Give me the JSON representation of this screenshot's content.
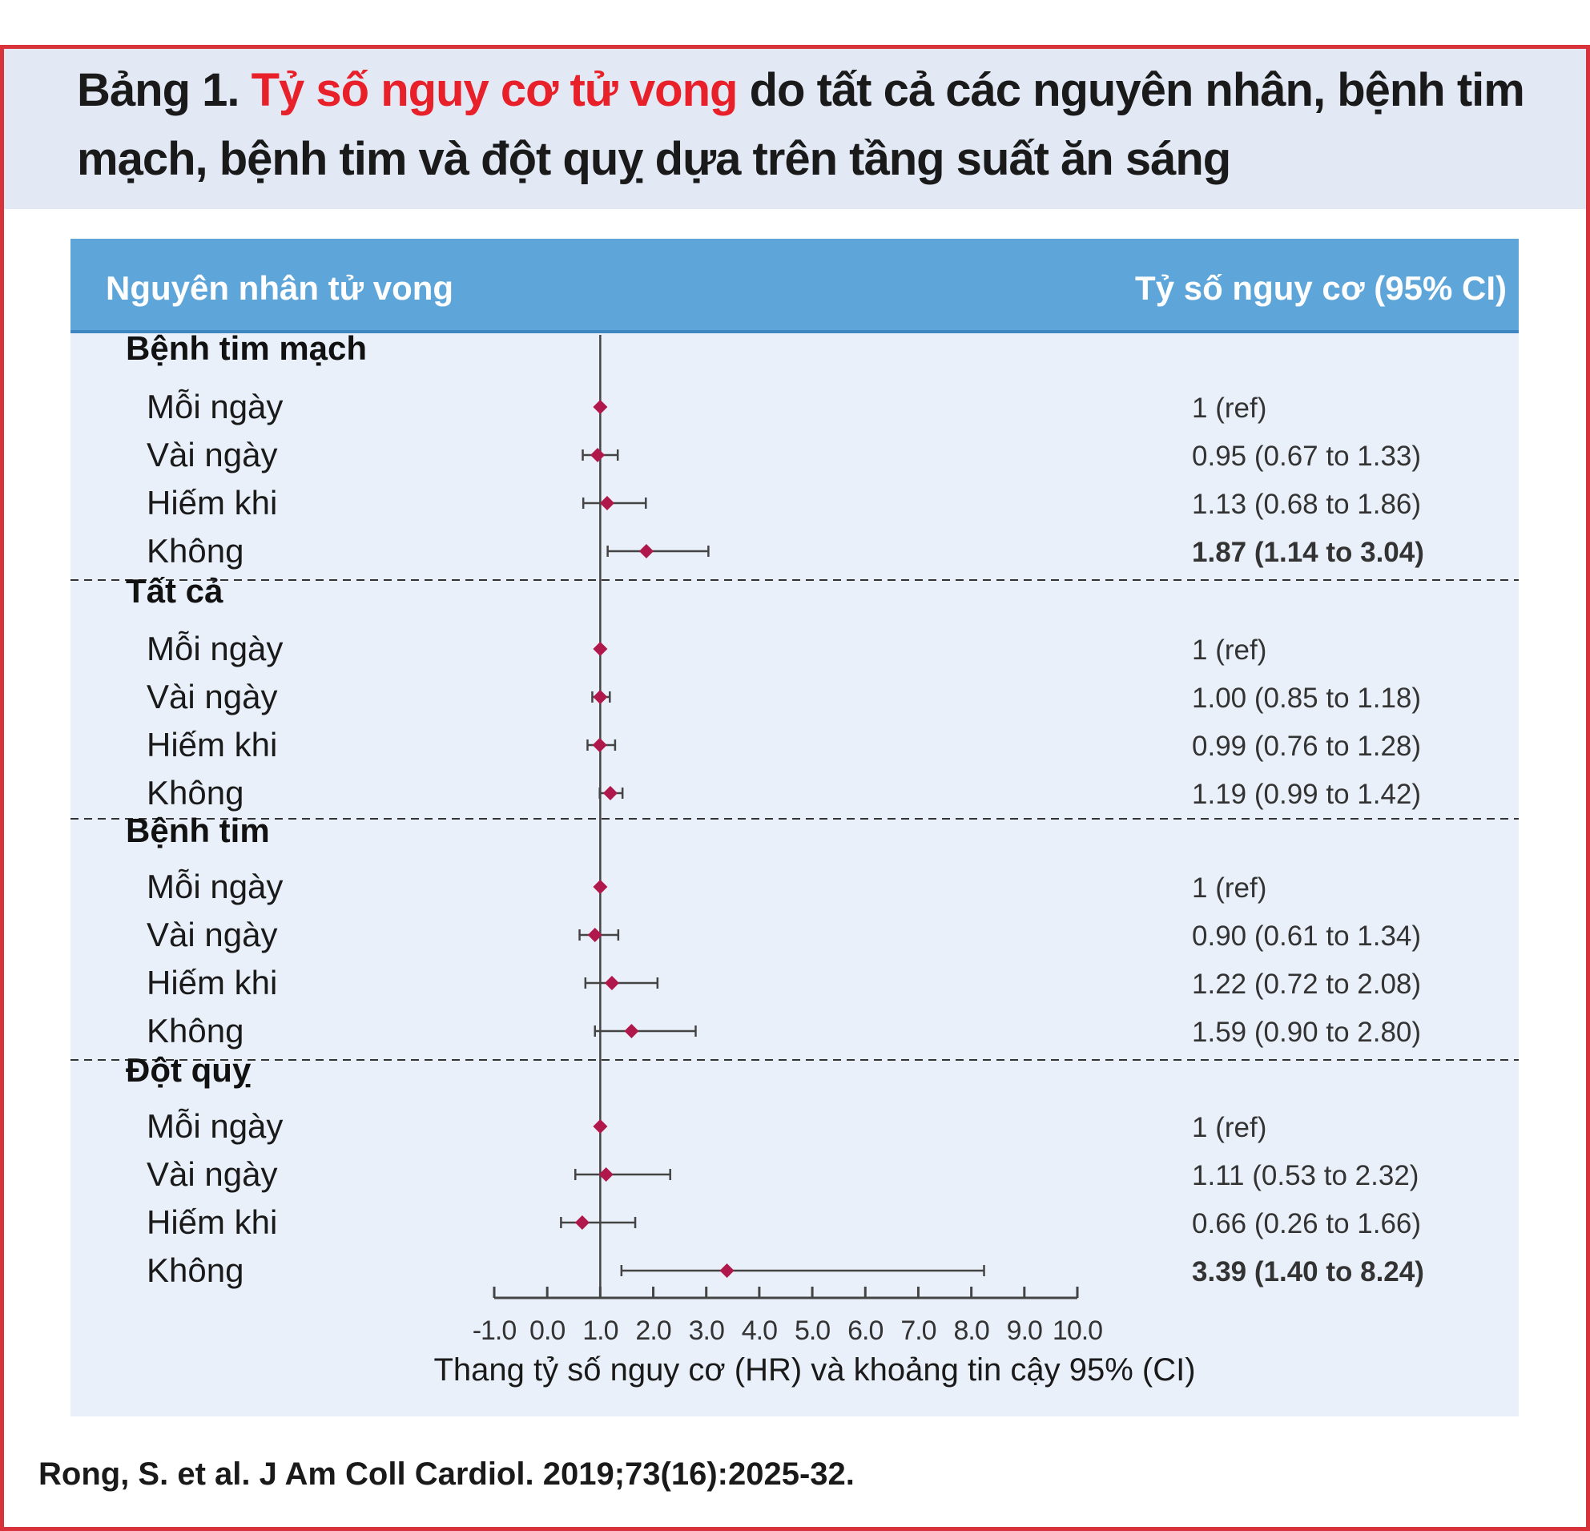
{
  "title": {
    "prefix": "Bảng 1.",
    "highlight": "Tỷ số nguy cơ tử vong",
    "rest": "do tất cả các nguyên nhân, bệnh tim mạch, bệnh tim và đột quỵ dựa trên tầng suất ăn sáng"
  },
  "header": {
    "left": "Nguyên nhân tử vong",
    "right": "Tỷ số nguy cơ (95% CI)"
  },
  "colors": {
    "marker": "#b0174a",
    "line": "#444444",
    "group_text": "#111111",
    "row_text": "#1a1a1a"
  },
  "citation": "Rong, S. et al. J Am Coll Cardiol. 2019;73(16):2025-32.",
  "chart_data": {
    "type": "forest",
    "xlabel": "Thang tỷ số nguy cơ (HR) và khoảng tin cậy 95% (CI)",
    "xlim": [
      -1.0,
      10.0
    ],
    "ref_line": 1.0,
    "ticks": [
      -1.0,
      0.0,
      1.0,
      2.0,
      3.0,
      4.0,
      5.0,
      6.0,
      7.0,
      8.0,
      9.0,
      10.0
    ],
    "tick_labels": [
      "-1.0",
      "0.0",
      "1.0",
      "2.0",
      "3.0",
      "4.0",
      "5.0",
      "6.0",
      "7.0",
      "8.0",
      "9.0",
      "10.0"
    ],
    "groups": [
      {
        "name": "Bệnh tim mạch",
        "rows": [
          {
            "label": "Mỗi ngày",
            "hr": 1.0,
            "lo": 1.0,
            "hi": 1.0,
            "text": "1 (ref)",
            "bold": false
          },
          {
            "label": "Vài ngày",
            "hr": 0.95,
            "lo": 0.67,
            "hi": 1.33,
            "text": "0.95 (0.67 to 1.33)",
            "bold": false
          },
          {
            "label": "Hiếm khi",
            "hr": 1.13,
            "lo": 0.68,
            "hi": 1.86,
            "text": "1.13 (0.68 to 1.86)",
            "bold": false
          },
          {
            "label": "Không",
            "hr": 1.87,
            "lo": 1.14,
            "hi": 3.04,
            "text": "1.87 (1.14 to 3.04)",
            "bold": true
          }
        ]
      },
      {
        "name": "Tất cả",
        "rows": [
          {
            "label": "Mỗi ngày",
            "hr": 1.0,
            "lo": 1.0,
            "hi": 1.0,
            "text": "1 (ref)",
            "bold": false
          },
          {
            "label": "Vài ngày",
            "hr": 1.0,
            "lo": 0.85,
            "hi": 1.18,
            "text": "1.00 (0.85 to 1.18)",
            "bold": false
          },
          {
            "label": "Hiếm khi",
            "hr": 0.99,
            "lo": 0.76,
            "hi": 1.28,
            "text": "0.99 (0.76 to 1.28)",
            "bold": false
          },
          {
            "label": "Không",
            "hr": 1.19,
            "lo": 0.99,
            "hi": 1.42,
            "text": "1.19 (0.99 to 1.42)",
            "bold": false
          }
        ]
      },
      {
        "name": "Bệnh tim",
        "rows": [
          {
            "label": "Mỗi ngày",
            "hr": 1.0,
            "lo": 1.0,
            "hi": 1.0,
            "text": "1 (ref)",
            "bold": false
          },
          {
            "label": "Vài ngày",
            "hr": 0.9,
            "lo": 0.61,
            "hi": 1.34,
            "text": "0.90 (0.61 to 1.34)",
            "bold": false
          },
          {
            "label": "Hiếm khi",
            "hr": 1.22,
            "lo": 0.72,
            "hi": 2.08,
            "text": "1.22 (0.72 to 2.08)",
            "bold": false
          },
          {
            "label": "Không",
            "hr": 1.59,
            "lo": 0.9,
            "hi": 2.8,
            "text": "1.59 (0.90 to 2.80)",
            "bold": false
          }
        ]
      },
      {
        "name": "Đột quỵ",
        "rows": [
          {
            "label": "Mỗi ngày",
            "hr": 1.0,
            "lo": 1.0,
            "hi": 1.0,
            "text": "1 (ref)",
            "bold": false
          },
          {
            "label": "Vài ngày",
            "hr": 1.11,
            "lo": 0.53,
            "hi": 2.32,
            "text": "1.11 (0.53 to 2.32)",
            "bold": false
          },
          {
            "label": "Hiếm khi",
            "hr": 0.66,
            "lo": 0.26,
            "hi": 1.66,
            "text": "0.66 (0.26 to 1.66)",
            "bold": false
          },
          {
            "label": "Không",
            "hr": 3.39,
            "lo": 1.4,
            "hi": 8.24,
            "text": "3.39 (1.40 to 8.24)",
            "bold": true
          }
        ]
      }
    ]
  }
}
